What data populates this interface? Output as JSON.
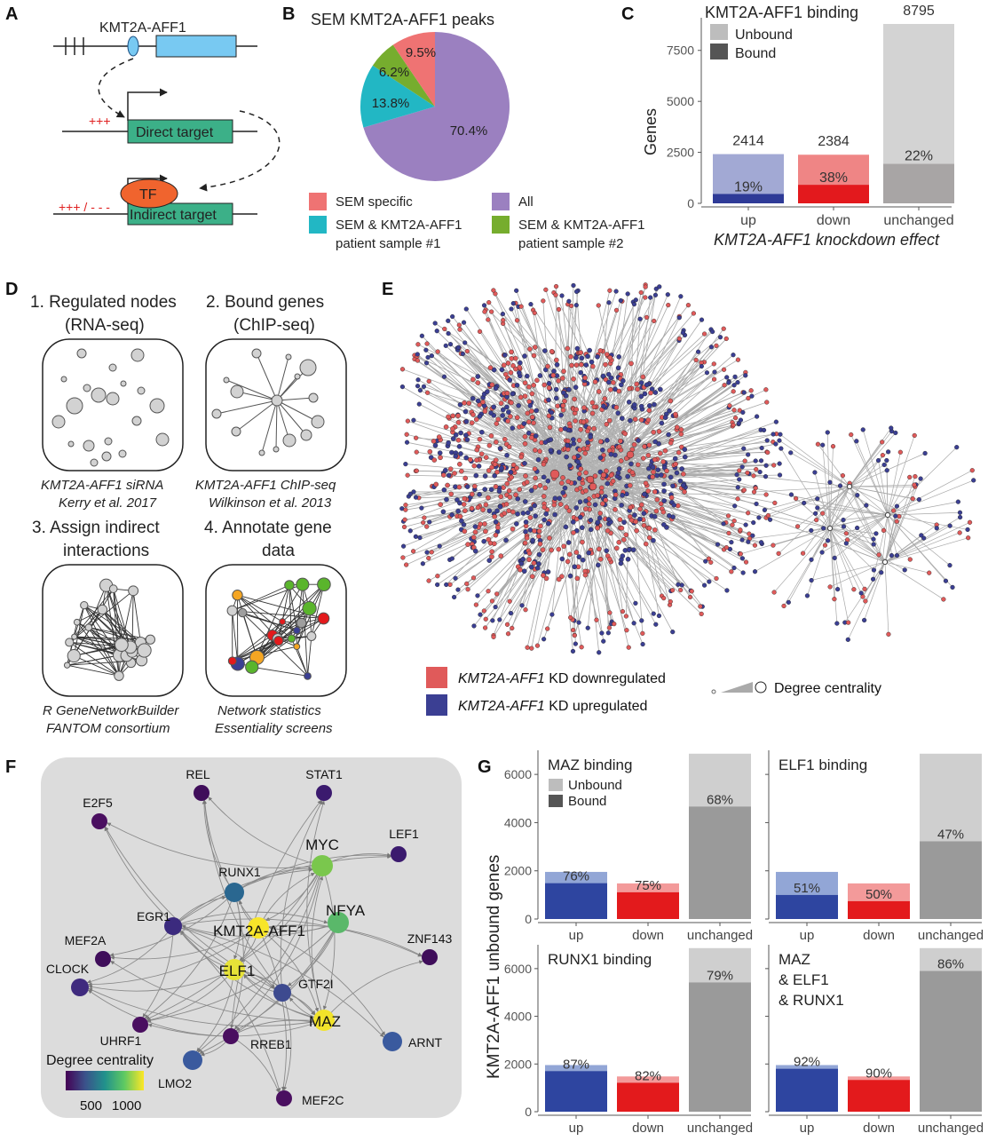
{
  "panels": {
    "A": {
      "letter": "A",
      "gene": "KMT2A-AFF1",
      "direct": "Direct target",
      "tf": "TF",
      "indirect": "Indirect target",
      "plus": "+++",
      "plusminus": "+++ / - - -"
    },
    "B": {
      "letter": "B",
      "title": "SEM KMT2A-AFF1 peaks",
      "legend": [
        {
          "lines": [
            "SEM specific"
          ],
          "color": "#ef7373"
        },
        {
          "lines": [
            "All"
          ],
          "color": "#9b80c0"
        },
        {
          "lines": [
            "SEM & KMT2A-AFF1",
            "patient sample #1"
          ],
          "color": "#22b7c4"
        },
        {
          "lines": [
            "SEM & KMT2A-AFF1",
            "patient sample #2"
          ],
          "color": "#76ad2e"
        }
      ]
    },
    "C": {
      "letter": "C",
      "title": "KMT2A-AFF1 binding",
      "unbound": "Unbound",
      "bound": "Bound"
    },
    "D": {
      "letter": "D",
      "s1a": "1. Regulated nodes",
      "s1b": "(RNA-seq)",
      "s2a": "2. Bound genes",
      "s2b": "(ChIP-seq)",
      "s3a": "3. Assign indirect",
      "s3b": "interactions",
      "s4a": "4. Annotate gene",
      "s4b": "data",
      "c1a": "KMT2A-AFF1 siRNA",
      "c1b": "Kerry et al. 2017",
      "c2a": "KMT2A-AFF1 ChIP-seq",
      "c2b": "Wilkinson et al. 2013",
      "c3a": "R GeneNetworkBuilder",
      "c3b": "FANTOM consortium",
      "c4a": "Network statistics",
      "c4b": "Essentiality screens"
    },
    "E": {
      "letter": "E",
      "gene": "KMT2A-AFF1",
      "down": " KD downregulated",
      "up": " KD upregulated",
      "degree": "Degree centrality",
      "red": "#e05a5a",
      "blue": "#3b3f93"
    },
    "F": {
      "letter": "F",
      "legend_title": "Degree centrality",
      "legend_low": "500",
      "legend_high": "1000",
      "nodes": [
        "REL",
        "STAT1",
        "E2F5",
        "MYC",
        "LEF1",
        "RUNX1",
        "EGR1",
        "KMT2A-AFF1",
        "NFYA",
        "MEF2A",
        "ZNF143",
        "ELF1",
        "CLOCK",
        "GTF2I",
        "MAZ",
        "UHRF1",
        "RREB1",
        "ARNT",
        "LMO2",
        "MEF2C"
      ]
    },
    "G": {
      "letter": "G",
      "ylabel": "KMT2A-AFF1 unbound genes",
      "unbound": "Unbound",
      "bound": "Bound"
    }
  },
  "chart_data": [
    {
      "type": "pie",
      "title": "SEM KMT2A-AFF1 peaks",
      "slices": [
        {
          "label": "All",
          "value": 70.4,
          "text": "70.4%",
          "color": "#9b80c0"
        },
        {
          "label": "SEM & KMT2A-AFF1 patient sample #1",
          "value": 13.8,
          "text": "13.8%",
          "color": "#22b7c4"
        },
        {
          "label": "SEM & KMT2A-AFF1 patient sample #2",
          "value": 6.2,
          "text": "6.2%",
          "color": "#76ad2e"
        },
        {
          "label": "SEM specific",
          "value": 9.5,
          "text": "9.5%",
          "color": "#ef7373"
        }
      ]
    },
    {
      "type": "bar",
      "title": "KMT2A-AFF1 binding",
      "xlabel": "KMT2A-AFF1 knockdown effect",
      "ylabel": "Genes",
      "ylim": [
        0,
        9100
      ],
      "yticks": [
        0,
        2500,
        5000,
        7500
      ],
      "categories": [
        "up",
        "down",
        "unchanged"
      ],
      "totals": [
        2414,
        2384,
        8795
      ],
      "bound_pct": [
        "19%",
        "38%",
        "22%"
      ],
      "bound": [
        459,
        906,
        1935
      ],
      "colors_total": [
        "#a2a9d4",
        "#ef8585",
        "#d3d3d3"
      ],
      "colors_bound": [
        "#2e3a97",
        "#e3191d",
        "#a8a5a5"
      ]
    },
    {
      "type": "bar",
      "ylabel": "KMT2A-AFF1 unbound genes",
      "categories": [
        "up",
        "down",
        "unchanged"
      ],
      "ylim": [
        0,
        7000
      ],
      "yticks": [
        0,
        2000,
        4000,
        6000
      ],
      "panels": [
        {
          "title": [
            "MAZ binding"
          ],
          "totals": [
            1955,
            1478,
            6860
          ],
          "bound": [
            1486,
            1108,
            4665
          ],
          "pct": [
            "76%",
            "75%",
            "68%"
          ]
        },
        {
          "title": [
            "ELF1 binding"
          ],
          "totals": [
            1955,
            1478,
            6860
          ],
          "bound": [
            997,
            739,
            3224
          ],
          "pct": [
            "51%",
            "50%",
            "47%"
          ]
        },
        {
          "title": [
            "RUNX1 binding"
          ],
          "totals": [
            1955,
            1478,
            6860
          ],
          "bound": [
            1701,
            1212,
            5419
          ],
          "pct": [
            "87%",
            "82%",
            "79%"
          ]
        },
        {
          "title": [
            "MAZ",
            "& ELF1",
            "& RUNX1"
          ],
          "totals": [
            1955,
            1478,
            6860
          ],
          "bound": [
            1799,
            1330,
            5900
          ],
          "pct": [
            "92%",
            "90%",
            "86%"
          ]
        }
      ]
    }
  ]
}
